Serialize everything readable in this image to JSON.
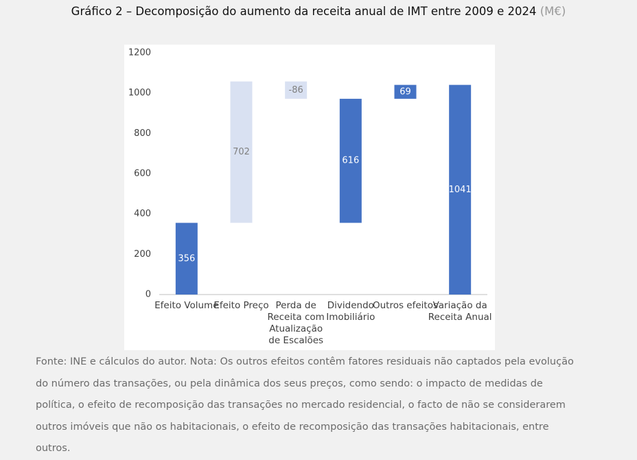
{
  "chart_data": {
    "type": "waterfall",
    "title": "Gráfico 2 – Decomposição do aumento da receita anual de IMT entre 2009 e 2024",
    "unit": "(M€)",
    "categories": [
      "Efeito Volume",
      "Efeito Preço",
      "Perda de Receita com Atualização de Escalões",
      "Dividendo Imobiliário",
      "Outros efeitos",
      "Variação da Receita Anual"
    ],
    "values": [
      356,
      702,
      -86,
      616,
      69,
      1041
    ],
    "measures": [
      "total",
      "relative",
      "relative",
      "subtotal",
      "relative",
      "total"
    ],
    "colors": [
      "#4472c4",
      "#d9e1f2",
      "#d9e1f2",
      "#4472c4",
      "#4472c4",
      "#4472c4"
    ],
    "value_label_colors": [
      "#ffffff",
      "#808080",
      "#808080",
      "#ffffff",
      "#ffffff",
      "#ffffff"
    ],
    "ylim": [
      0,
      1200
    ],
    "yticks": [
      0,
      200,
      400,
      600,
      800,
      1000,
      1200
    ],
    "grid": false,
    "note": "Fonte: INE e cálculos do autor. Nota: Os outros efeitos contêm fatores residuais não captados pela evolução do número das transações, ou pela dinâmica dos seus preços, como sendo: o impacto de medidas de política, o efeito de recomposição das transações no mercado residencial, o facto de não se considerarem outros imóveis que não os habitacionais, o efeito de recomposição das transações habitacionais, entre outros."
  }
}
